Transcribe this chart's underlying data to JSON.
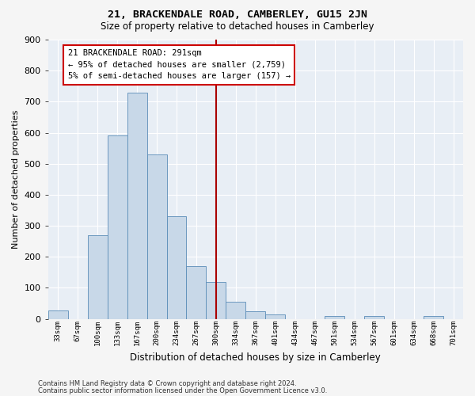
{
  "title": "21, BRACKENDALE ROAD, CAMBERLEY, GU15 2JN",
  "subtitle": "Size of property relative to detached houses in Camberley",
  "xlabel": "Distribution of detached houses by size in Camberley",
  "ylabel": "Number of detached properties",
  "bar_values": [
    27,
    0,
    270,
    590,
    730,
    530,
    330,
    170,
    120,
    55,
    25,
    15,
    0,
    0,
    10,
    0,
    10,
    0,
    0,
    10,
    0
  ],
  "bar_labels": [
    "33sqm",
    "67sqm",
    "100sqm",
    "133sqm",
    "167sqm",
    "200sqm",
    "234sqm",
    "267sqm",
    "300sqm",
    "334sqm",
    "367sqm",
    "401sqm",
    "434sqm",
    "467sqm",
    "501sqm",
    "534sqm",
    "567sqm",
    "601sqm",
    "634sqm",
    "668sqm",
    "701sqm"
  ],
  "bar_color": "#c8d8e8",
  "bar_edge_color": "#5b8db8",
  "bg_color": "#e8eef5",
  "fig_color": "#f5f5f5",
  "grid_color": "#ffffff",
  "vline_index": 8,
  "vline_color": "#aa0000",
  "annotation_line1": "21 BRACKENDALE ROAD: 291sqm",
  "annotation_line2": "← 95% of detached houses are smaller (2,759)",
  "annotation_line3": "5% of semi-detached houses are larger (157) →",
  "annotation_box_edge": "#cc0000",
  "ylim": [
    0,
    900
  ],
  "yticks": [
    0,
    100,
    200,
    300,
    400,
    500,
    600,
    700,
    800,
    900
  ],
  "footer1": "Contains HM Land Registry data © Crown copyright and database right 2024.",
  "footer2": "Contains public sector information licensed under the Open Government Licence v3.0."
}
